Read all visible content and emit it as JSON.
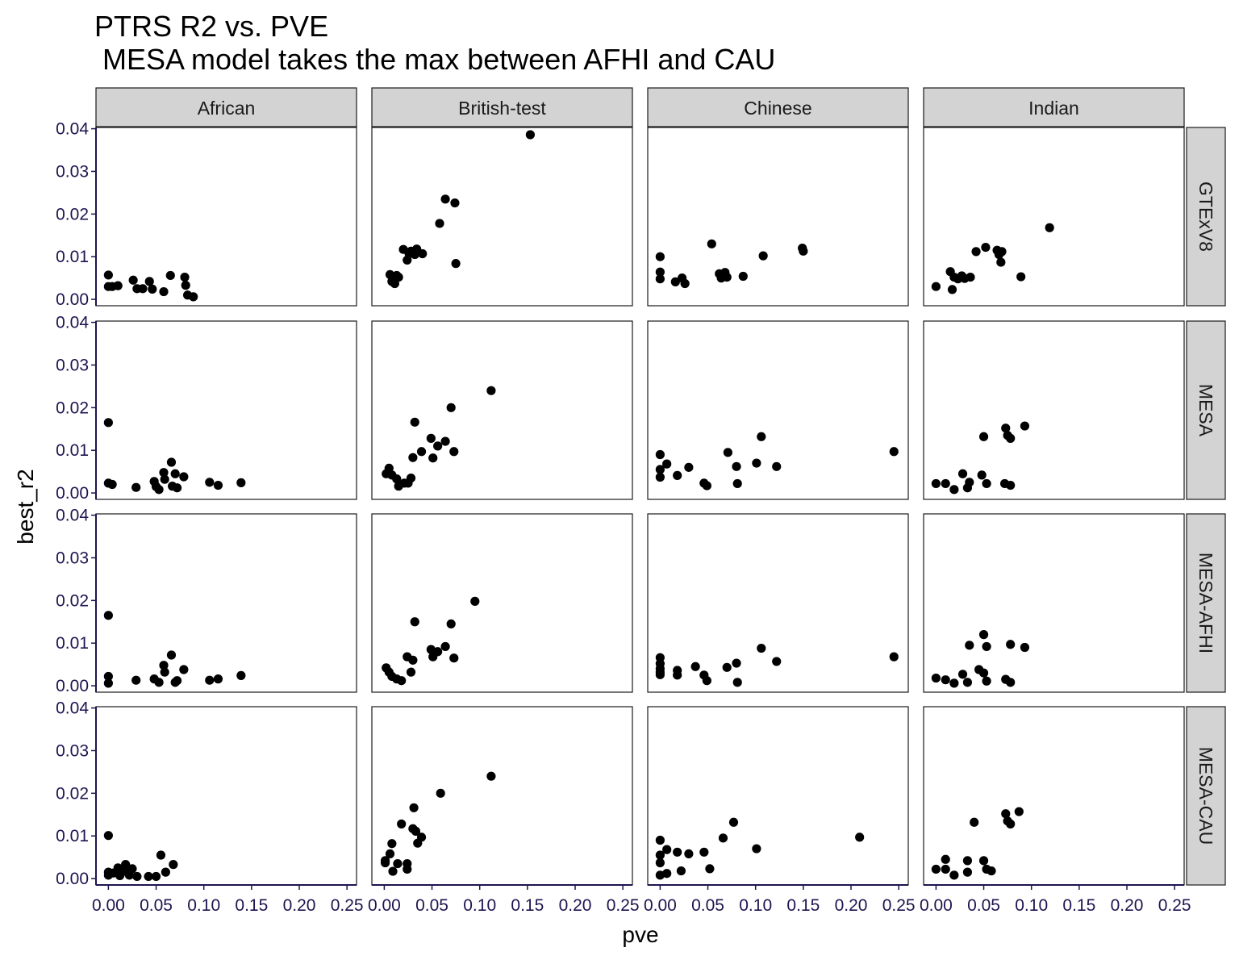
{
  "chart_data": {
    "type": "scatter",
    "title": "PTRS R2 vs. PVE",
    "subtitle": " MESA model takes the max between AFHI and CAU",
    "xlabel": "pve",
    "ylabel": "best_r2",
    "xlim": [
      -0.013,
      0.26
    ],
    "ylim": [
      -0.0015,
      0.0403
    ],
    "xticks": [
      0,
      0.05,
      0.1,
      0.15,
      0.2,
      0.25
    ],
    "xtick_labels": [
      "0.00",
      "0.05",
      "0.10",
      "0.15",
      "0.20",
      "0.25"
    ],
    "yticks": [
      0,
      0.01,
      0.02,
      0.03,
      0.04
    ],
    "ytick_labels": [
      "0.00",
      "0.01",
      "0.02",
      "0.03",
      "0.04"
    ],
    "grid": false,
    "columns": [
      "African",
      "British-test",
      "Chinese",
      "Indian"
    ],
    "rows": [
      "GTExV8",
      "MESA",
      "MESA-AFHI",
      "MESA-CAU"
    ],
    "panels": [
      {
        "row": "GTExV8",
        "col": "African",
        "points": [
          [
            0.0,
            0.0057
          ],
          [
            0.0,
            0.003
          ],
          [
            0.004,
            0.003
          ],
          [
            0.01,
            0.0032
          ],
          [
            0.026,
            0.0045
          ],
          [
            0.03,
            0.0025
          ],
          [
            0.036,
            0.0025
          ],
          [
            0.043,
            0.0042
          ],
          [
            0.046,
            0.0024
          ],
          [
            0.058,
            0.0018
          ],
          [
            0.065,
            0.0056
          ],
          [
            0.08,
            0.0052
          ],
          [
            0.081,
            0.0033
          ],
          [
            0.083,
            0.001
          ],
          [
            0.089,
            0.0006
          ]
        ]
      },
      {
        "row": "GTExV8",
        "col": "British-test",
        "points": [
          [
            0.006,
            0.0058
          ],
          [
            0.008,
            0.0042
          ],
          [
            0.011,
            0.0037
          ],
          [
            0.013,
            0.0056
          ],
          [
            0.015,
            0.0052
          ],
          [
            0.02,
            0.0117
          ],
          [
            0.024,
            0.0092
          ],
          [
            0.026,
            0.0107
          ],
          [
            0.028,
            0.0113
          ],
          [
            0.032,
            0.0105
          ],
          [
            0.034,
            0.0118
          ],
          [
            0.04,
            0.0107
          ],
          [
            0.058,
            0.0178
          ],
          [
            0.064,
            0.0235
          ],
          [
            0.074,
            0.0226
          ],
          [
            0.075,
            0.0084
          ],
          [
            0.153,
            0.0386
          ]
        ]
      },
      {
        "row": "GTExV8",
        "col": "Chinese",
        "points": [
          [
            0.0,
            0.01
          ],
          [
            0.0,
            0.0064
          ],
          [
            0.0,
            0.0048
          ],
          [
            0.016,
            0.0041
          ],
          [
            0.023,
            0.005
          ],
          [
            0.026,
            0.0037
          ],
          [
            0.054,
            0.013
          ],
          [
            0.062,
            0.006
          ],
          [
            0.064,
            0.005
          ],
          [
            0.068,
            0.0063
          ],
          [
            0.07,
            0.0052
          ],
          [
            0.087,
            0.0054
          ],
          [
            0.108,
            0.0102
          ],
          [
            0.149,
            0.012
          ],
          [
            0.15,
            0.0113
          ]
        ]
      },
      {
        "row": "GTExV8",
        "col": "Indian",
        "points": [
          [
            0.0,
            0.003
          ],
          [
            0.015,
            0.0065
          ],
          [
            0.017,
            0.0023
          ],
          [
            0.019,
            0.0052
          ],
          [
            0.023,
            0.0048
          ],
          [
            0.027,
            0.0055
          ],
          [
            0.03,
            0.0049
          ],
          [
            0.036,
            0.0052
          ],
          [
            0.042,
            0.0112
          ],
          [
            0.052,
            0.0122
          ],
          [
            0.064,
            0.0115
          ],
          [
            0.066,
            0.0105
          ],
          [
            0.068,
            0.0087
          ],
          [
            0.069,
            0.0112
          ],
          [
            0.089,
            0.0053
          ],
          [
            0.119,
            0.0168
          ]
        ]
      },
      {
        "row": "MESA",
        "col": "African",
        "points": [
          [
            0.0,
            0.0165
          ],
          [
            0.0,
            0.0023
          ],
          [
            0.004,
            0.002
          ],
          [
            0.029,
            0.0013
          ],
          [
            0.048,
            0.0027
          ],
          [
            0.05,
            0.0015
          ],
          [
            0.053,
            0.0008
          ],
          [
            0.058,
            0.0048
          ],
          [
            0.059,
            0.0032
          ],
          [
            0.066,
            0.0072
          ],
          [
            0.067,
            0.0016
          ],
          [
            0.07,
            0.0045
          ],
          [
            0.072,
            0.0012
          ],
          [
            0.079,
            0.0038
          ],
          [
            0.106,
            0.0025
          ],
          [
            0.115,
            0.0018
          ],
          [
            0.139,
            0.0024
          ]
        ]
      },
      {
        "row": "MESA",
        "col": "British-test",
        "points": [
          [
            0.002,
            0.0045
          ],
          [
            0.005,
            0.0058
          ],
          [
            0.008,
            0.0042
          ],
          [
            0.013,
            0.0033
          ],
          [
            0.015,
            0.0016
          ],
          [
            0.021,
            0.0023
          ],
          [
            0.025,
            0.0023
          ],
          [
            0.028,
            0.0035
          ],
          [
            0.03,
            0.0083
          ],
          [
            0.032,
            0.0166
          ],
          [
            0.039,
            0.0097
          ],
          [
            0.049,
            0.0128
          ],
          [
            0.051,
            0.0082
          ],
          [
            0.056,
            0.011
          ],
          [
            0.064,
            0.0121
          ],
          [
            0.07,
            0.02
          ],
          [
            0.073,
            0.0097
          ],
          [
            0.112,
            0.024
          ]
        ]
      },
      {
        "row": "MESA",
        "col": "Chinese",
        "points": [
          [
            0.0,
            0.009
          ],
          [
            0.0,
            0.0055
          ],
          [
            0.0,
            0.0037
          ],
          [
            0.007,
            0.0068
          ],
          [
            0.018,
            0.0041
          ],
          [
            0.03,
            0.006
          ],
          [
            0.046,
            0.0023
          ],
          [
            0.049,
            0.0017
          ],
          [
            0.071,
            0.0095
          ],
          [
            0.08,
            0.0062
          ],
          [
            0.081,
            0.0022
          ],
          [
            0.101,
            0.007
          ],
          [
            0.106,
            0.0132
          ],
          [
            0.122,
            0.0062
          ],
          [
            0.245,
            0.0097
          ]
        ]
      },
      {
        "row": "MESA",
        "col": "Indian",
        "points": [
          [
            0.0,
            0.0022
          ],
          [
            0.01,
            0.0022
          ],
          [
            0.019,
            0.0008
          ],
          [
            0.028,
            0.0045
          ],
          [
            0.033,
            0.0012
          ],
          [
            0.035,
            0.0025
          ],
          [
            0.048,
            0.0042
          ],
          [
            0.05,
            0.0132
          ],
          [
            0.053,
            0.0022
          ],
          [
            0.072,
            0.0022
          ],
          [
            0.073,
            0.0152
          ],
          [
            0.075,
            0.0135
          ],
          [
            0.078,
            0.0128
          ],
          [
            0.078,
            0.0018
          ],
          [
            0.093,
            0.0157
          ]
        ]
      },
      {
        "row": "MESA-AFHI",
        "col": "African",
        "points": [
          [
            0.0,
            0.0165
          ],
          [
            0.0,
            0.0022
          ],
          [
            0.0,
            0.0006
          ],
          [
            0.029,
            0.0013
          ],
          [
            0.048,
            0.0016
          ],
          [
            0.053,
            0.0008
          ],
          [
            0.058,
            0.0048
          ],
          [
            0.059,
            0.0032
          ],
          [
            0.066,
            0.0072
          ],
          [
            0.07,
            0.0008
          ],
          [
            0.072,
            0.0012
          ],
          [
            0.079,
            0.0038
          ],
          [
            0.106,
            0.0013
          ],
          [
            0.115,
            0.0016
          ],
          [
            0.139,
            0.0024
          ]
        ]
      },
      {
        "row": "MESA-AFHI",
        "col": "British-test",
        "points": [
          [
            0.002,
            0.0042
          ],
          [
            0.005,
            0.0032
          ],
          [
            0.008,
            0.0022
          ],
          [
            0.013,
            0.0016
          ],
          [
            0.018,
            0.0012
          ],
          [
            0.024,
            0.0068
          ],
          [
            0.028,
            0.0032
          ],
          [
            0.03,
            0.006
          ],
          [
            0.032,
            0.015
          ],
          [
            0.049,
            0.0085
          ],
          [
            0.051,
            0.0068
          ],
          [
            0.056,
            0.008
          ],
          [
            0.064,
            0.0092
          ],
          [
            0.07,
            0.0145
          ],
          [
            0.073,
            0.0065
          ],
          [
            0.095,
            0.0198
          ]
        ]
      },
      {
        "row": "MESA-AFHI",
        "col": "Chinese",
        "points": [
          [
            0.0,
            0.0066
          ],
          [
            0.0,
            0.0052
          ],
          [
            0.0,
            0.004
          ],
          [
            0.0,
            0.0032
          ],
          [
            0.0,
            0.0026
          ],
          [
            0.018,
            0.0036
          ],
          [
            0.018,
            0.0025
          ],
          [
            0.037,
            0.0045
          ],
          [
            0.046,
            0.0025
          ],
          [
            0.049,
            0.0012
          ],
          [
            0.07,
            0.0043
          ],
          [
            0.08,
            0.0053
          ],
          [
            0.081,
            0.0008
          ],
          [
            0.106,
            0.0088
          ],
          [
            0.122,
            0.0057
          ],
          [
            0.245,
            0.0068
          ]
        ]
      },
      {
        "row": "MESA-AFHI",
        "col": "Indian",
        "points": [
          [
            0.0,
            0.0018
          ],
          [
            0.01,
            0.0014
          ],
          [
            0.019,
            0.0006
          ],
          [
            0.028,
            0.0027
          ],
          [
            0.033,
            0.0008
          ],
          [
            0.035,
            0.0095
          ],
          [
            0.045,
            0.0038
          ],
          [
            0.05,
            0.012
          ],
          [
            0.05,
            0.003
          ],
          [
            0.053,
            0.0092
          ],
          [
            0.053,
            0.0011
          ],
          [
            0.073,
            0.0015
          ],
          [
            0.078,
            0.0008
          ],
          [
            0.078,
            0.0097
          ],
          [
            0.093,
            0.009
          ]
        ]
      },
      {
        "row": "MESA-CAU",
        "col": "African",
        "points": [
          [
            0.0,
            0.0101
          ],
          [
            0.0,
            0.0015
          ],
          [
            0.0,
            0.0008
          ],
          [
            0.005,
            0.0013
          ],
          [
            0.01,
            0.0025
          ],
          [
            0.012,
            0.0007
          ],
          [
            0.015,
            0.0018
          ],
          [
            0.018,
            0.0033
          ],
          [
            0.02,
            0.0015
          ],
          [
            0.022,
            0.0008
          ],
          [
            0.025,
            0.0023
          ],
          [
            0.03,
            0.0005
          ],
          [
            0.042,
            0.0005
          ],
          [
            0.05,
            0.0005
          ],
          [
            0.055,
            0.0055
          ],
          [
            0.06,
            0.0015
          ],
          [
            0.068,
            0.0033
          ]
        ]
      },
      {
        "row": "MESA-CAU",
        "col": "British-test",
        "points": [
          [
            0.001,
            0.0042
          ],
          [
            0.001,
            0.0037
          ],
          [
            0.006,
            0.0058
          ],
          [
            0.008,
            0.0082
          ],
          [
            0.009,
            0.0017
          ],
          [
            0.014,
            0.0035
          ],
          [
            0.018,
            0.0128
          ],
          [
            0.024,
            0.0035
          ],
          [
            0.024,
            0.0022
          ],
          [
            0.03,
            0.0117
          ],
          [
            0.031,
            0.0166
          ],
          [
            0.033,
            0.0111
          ],
          [
            0.035,
            0.0083
          ],
          [
            0.039,
            0.0097
          ],
          [
            0.059,
            0.02
          ],
          [
            0.112,
            0.024
          ]
        ]
      },
      {
        "row": "MESA-CAU",
        "col": "Chinese",
        "points": [
          [
            0.0,
            0.009
          ],
          [
            0.0,
            0.0055
          ],
          [
            0.0,
            0.0037
          ],
          [
            0.0,
            0.0008
          ],
          [
            0.007,
            0.0068
          ],
          [
            0.007,
            0.0012
          ],
          [
            0.018,
            0.0062
          ],
          [
            0.022,
            0.0018
          ],
          [
            0.03,
            0.0058
          ],
          [
            0.046,
            0.0062
          ],
          [
            0.052,
            0.0023
          ],
          [
            0.066,
            0.0095
          ],
          [
            0.077,
            0.0132
          ],
          [
            0.101,
            0.007
          ],
          [
            0.209,
            0.0097
          ]
        ]
      },
      {
        "row": "MESA-CAU",
        "col": "Indian",
        "points": [
          [
            0.0,
            0.0022
          ],
          [
            0.01,
            0.0045
          ],
          [
            0.01,
            0.0022
          ],
          [
            0.019,
            0.0008
          ],
          [
            0.033,
            0.0042
          ],
          [
            0.033,
            0.0015
          ],
          [
            0.04,
            0.0132
          ],
          [
            0.05,
            0.0042
          ],
          [
            0.053,
            0.0022
          ],
          [
            0.058,
            0.0018
          ],
          [
            0.073,
            0.0152
          ],
          [
            0.075,
            0.0135
          ],
          [
            0.078,
            0.0128
          ],
          [
            0.087,
            0.0157
          ]
        ]
      }
    ]
  },
  "colors": {
    "point": "#000000",
    "strip_fill": "#d3d3d3",
    "panel_border": "#1a1a1a",
    "axis_line": "#1f1450",
    "tick_text": "#1f1450"
  }
}
